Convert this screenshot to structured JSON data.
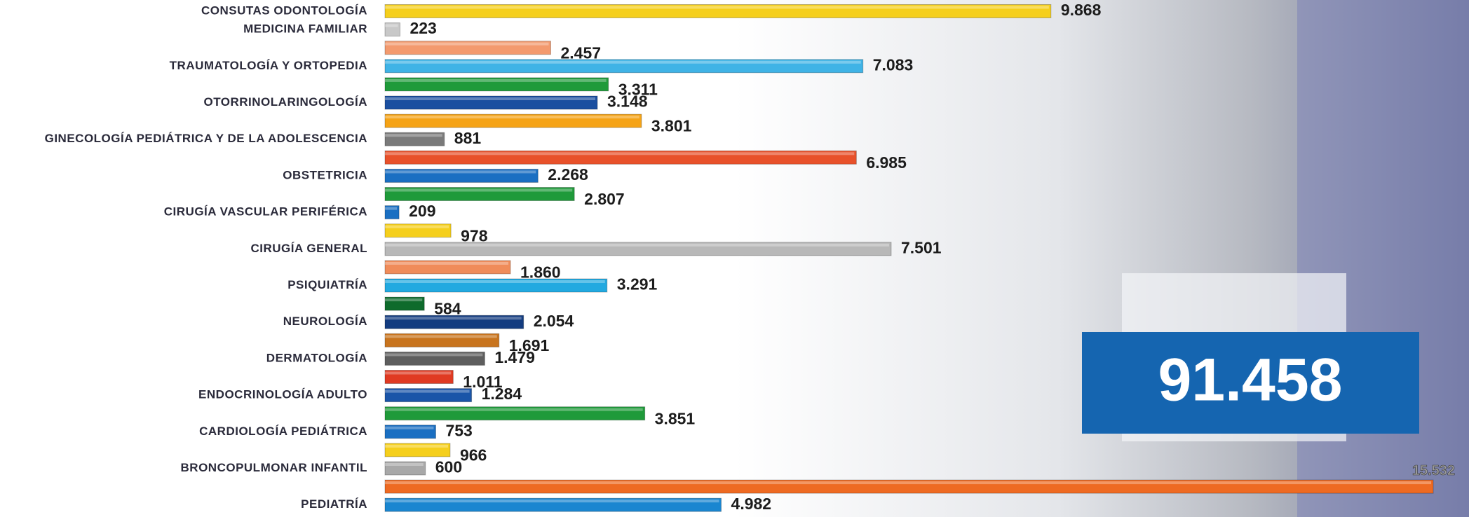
{
  "chart_data": {
    "type": "hbar",
    "categories": [
      "CONSUTAS ODONTOLOGÍA",
      "MEDICINA FAMILIAR",
      null,
      "TRAUMATOLOGÍA Y ORTOPEDIA",
      null,
      "OTORRINOLARINGOLOGÍA",
      null,
      "GINECOLOGÍA PEDIÁTRICA Y DE LA ADOLESCENCIA",
      null,
      "OBSTETRICIA",
      null,
      "CIRUGÍA VASCULAR PERIFÉRICA",
      null,
      "CIRUGÍA GENERAL",
      null,
      "PSIQUIATRÍA",
      null,
      "NEUROLOGÍA",
      null,
      "DERMATOLOGÍA",
      null,
      "ENDOCRINOLOGÍA ADULTO",
      null,
      "CARDIOLOGÍA PEDIÁTRICA",
      null,
      "BRONCOPULMONAR INFANTIL",
      null,
      "PEDIATRÍA"
    ],
    "values": [
      9868,
      223,
      2457,
      7083,
      3311,
      3148,
      3801,
      881,
      6985,
      2268,
      2807,
      209,
      978,
      7501,
      1860,
      3291,
      584,
      2054,
      1691,
      1479,
      1011,
      1284,
      3851,
      753,
      966,
      600,
      15532,
      4982
    ],
    "value_labels": [
      "9.868",
      "223",
      "2.457",
      "7.083",
      "3.311",
      "3.148",
      "3.801",
      "881",
      "6.985",
      "2.268",
      "2.807",
      "209",
      "978",
      "7.501",
      "1.860",
      "3.291",
      "584",
      "2.054",
      "1.691",
      "1.479",
      "1.011",
      "1.284",
      "3.851",
      "753",
      "966",
      "600",
      "15.532",
      "4.982"
    ],
    "colors": [
      "#f5cf1c",
      "#c8c8c8",
      "#f39a6e",
      "#3fb3e6",
      "#1f9a3a",
      "#1b4fa0",
      "#f5a316",
      "#7a7a7a",
      "#e8512a",
      "#1a6fc2",
      "#1f9a3a",
      "#1a6fc2",
      "#f5cf1c",
      "#b8b8b8",
      "#f08c5a",
      "#22a9e0",
      "#0e6b2c",
      "#133c80",
      "#c8741e",
      "#5e5e5e",
      "#e03a22",
      "#1a55a8",
      "#1f9a3a",
      "#1a6fc2",
      "#f5cf1c",
      "#a8a8a8",
      "#ee6a22",
      "#1a86d0"
    ],
    "total_label": "91.458"
  }
}
